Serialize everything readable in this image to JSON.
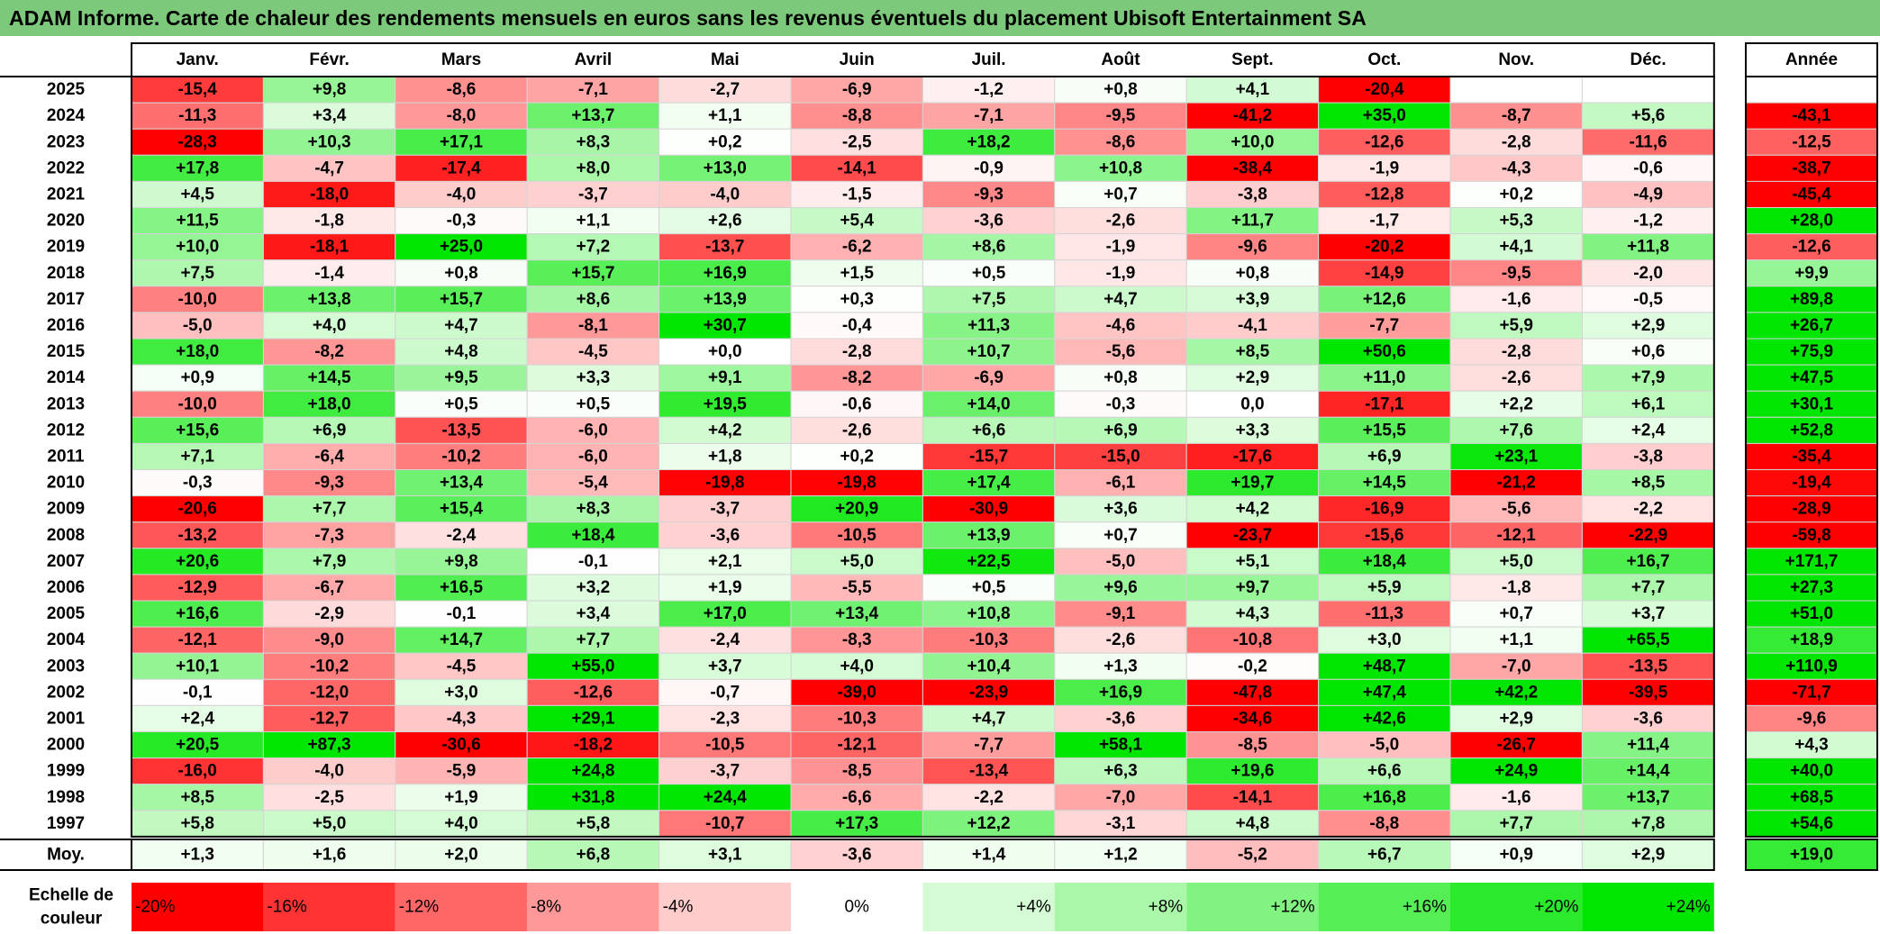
{
  "title": "ADAM Informe. Carte de chaleur des rendements mensuels en euros sans les revenus éventuels du placement Ubisoft Entertainment SA",
  "colors": {
    "title_bg": "#7dc97b",
    "positive_max": "#00e600",
    "negative_max": "#ff0000",
    "neutral": "#ffffff"
  },
  "chart_data": {
    "type": "heatmap",
    "columns": [
      "Janv.",
      "Févr.",
      "Mars",
      "Avril",
      "Mai",
      "Juin",
      "Juil.",
      "Août",
      "Sept.",
      "Oct.",
      "Nov.",
      "Déc."
    ],
    "annual_header": "Année",
    "rows": [
      {
        "year": "2025",
        "months": [
          "-15,4",
          "+9,8",
          "-8,6",
          "-7,1",
          "-2,7",
          "-6,9",
          "-1,2",
          "+0,8",
          "+4,1",
          "-20,4",
          "",
          ""
        ],
        "annual": ""
      },
      {
        "year": "2024",
        "months": [
          "-11,3",
          "+3,4",
          "-8,0",
          "+13,7",
          "+1,1",
          "-8,8",
          "-7,1",
          "-9,5",
          "-41,2",
          "+35,0",
          "-8,7",
          "+5,6"
        ],
        "annual": "-43,1"
      },
      {
        "year": "2023",
        "months": [
          "-28,3",
          "+10,3",
          "+17,1",
          "+8,3",
          "+0,2",
          "-2,5",
          "+18,2",
          "-8,6",
          "+10,0",
          "-12,6",
          "-2,8",
          "-11,6"
        ],
        "annual": "-12,5"
      },
      {
        "year": "2022",
        "months": [
          "+17,8",
          "-4,7",
          "-17,4",
          "+8,0",
          "+13,0",
          "-14,1",
          "-0,9",
          "+10,8",
          "-38,4",
          "-1,9",
          "-4,3",
          "-0,6"
        ],
        "annual": "-38,7"
      },
      {
        "year": "2021",
        "months": [
          "+4,5",
          "-18,0",
          "-4,0",
          "-3,7",
          "-4,0",
          "-1,5",
          "-9,3",
          "+0,7",
          "-3,8",
          "-12,8",
          "+0,2",
          "-4,9"
        ],
        "annual": "-45,4"
      },
      {
        "year": "2020",
        "months": [
          "+11,5",
          "-1,8",
          "-0,3",
          "+1,1",
          "+2,6",
          "+5,4",
          "-3,6",
          "-2,6",
          "+11,7",
          "-1,7",
          "+5,3",
          "-1,2"
        ],
        "annual": "+28,0"
      },
      {
        "year": "2019",
        "months": [
          "+10,0",
          "-18,1",
          "+25,0",
          "+7,2",
          "-13,7",
          "-6,2",
          "+8,6",
          "-1,9",
          "-9,6",
          "-20,2",
          "+4,1",
          "+11,8"
        ],
        "annual": "-12,6"
      },
      {
        "year": "2018",
        "months": [
          "+7,5",
          "-1,4",
          "+0,8",
          "+15,7",
          "+16,9",
          "+1,5",
          "+0,5",
          "-1,9",
          "+0,8",
          "-14,9",
          "-9,5",
          "-2,0"
        ],
        "annual": "+9,9"
      },
      {
        "year": "2017",
        "months": [
          "-10,0",
          "+13,8",
          "+15,7",
          "+8,6",
          "+13,9",
          "+0,3",
          "+7,5",
          "+4,7",
          "+3,9",
          "+12,6",
          "-1,6",
          "-0,5"
        ],
        "annual": "+89,8"
      },
      {
        "year": "2016",
        "months": [
          "-5,0",
          "+4,0",
          "+4,7",
          "-8,1",
          "+30,7",
          "-0,4",
          "+11,3",
          "-4,6",
          "-4,1",
          "-7,7",
          "+5,9",
          "+2,9"
        ],
        "annual": "+26,7"
      },
      {
        "year": "2015",
        "months": [
          "+18,0",
          "-8,2",
          "+4,8",
          "-4,5",
          "+0,0",
          "-2,8",
          "+10,7",
          "-5,6",
          "+8,5",
          "+50,6",
          "-2,8",
          "+0,6"
        ],
        "annual": "+75,9"
      },
      {
        "year": "2014",
        "months": [
          "+0,9",
          "+14,5",
          "+9,5",
          "+3,3",
          "+9,1",
          "-8,2",
          "-6,9",
          "+0,8",
          "+2,9",
          "+11,0",
          "-2,6",
          "+7,9"
        ],
        "annual": "+47,5"
      },
      {
        "year": "2013",
        "months": [
          "-10,0",
          "+18,0",
          "+0,5",
          "+0,5",
          "+19,5",
          "-0,6",
          "+14,0",
          "-0,3",
          "0,0",
          "-17,1",
          "+2,2",
          "+6,1"
        ],
        "annual": "+30,1"
      },
      {
        "year": "2012",
        "months": [
          "+15,6",
          "+6,9",
          "-13,5",
          "-6,0",
          "+4,2",
          "-2,6",
          "+6,6",
          "+6,9",
          "+3,3",
          "+15,5",
          "+7,6",
          "+2,4"
        ],
        "annual": "+52,8"
      },
      {
        "year": "2011",
        "months": [
          "+7,1",
          "-6,4",
          "-10,2",
          "-6,0",
          "+1,8",
          "+0,2",
          "-15,7",
          "-15,0",
          "-17,6",
          "+6,9",
          "+23,1",
          "-3,8"
        ],
        "annual": "-35,4"
      },
      {
        "year": "2010",
        "months": [
          "-0,3",
          "-9,3",
          "+13,4",
          "-5,4",
          "-19,8",
          "-19,8",
          "+17,4",
          "-6,1",
          "+19,7",
          "+14,5",
          "-21,2",
          "+8,5"
        ],
        "annual": "-19,4"
      },
      {
        "year": "2009",
        "months": [
          "-20,6",
          "+7,7",
          "+15,4",
          "+8,3",
          "-3,7",
          "+20,9",
          "-30,9",
          "+3,6",
          "+4,2",
          "-16,9",
          "-5,6",
          "-2,2"
        ],
        "annual": "-28,9"
      },
      {
        "year": "2008",
        "months": [
          "-13,2",
          "-7,3",
          "-2,4",
          "+18,4",
          "-3,6",
          "-10,5",
          "+13,9",
          "+0,7",
          "-23,7",
          "-15,6",
          "-12,1",
          "-22,9"
        ],
        "annual": "-59,8"
      },
      {
        "year": "2007",
        "months": [
          "+20,6",
          "+7,9",
          "+9,8",
          "-0,1",
          "+2,1",
          "+5,0",
          "+22,5",
          "-5,0",
          "+5,1",
          "+18,4",
          "+5,0",
          "+16,7"
        ],
        "annual": "+171,7"
      },
      {
        "year": "2006",
        "months": [
          "-12,9",
          "-6,7",
          "+16,5",
          "+3,2",
          "+1,9",
          "-5,5",
          "+0,5",
          "+9,6",
          "+9,7",
          "+5,9",
          "-1,8",
          "+7,7"
        ],
        "annual": "+27,3"
      },
      {
        "year": "2005",
        "months": [
          "+16,6",
          "-2,9",
          "-0,1",
          "+3,4",
          "+17,0",
          "+13,4",
          "+10,8",
          "-9,1",
          "+4,3",
          "-11,3",
          "+0,7",
          "+3,7"
        ],
        "annual": "+51,0"
      },
      {
        "year": "2004",
        "months": [
          "-12,1",
          "-9,0",
          "+14,7",
          "+7,7",
          "-2,4",
          "-8,3",
          "-10,3",
          "-2,6",
          "-10,8",
          "+3,0",
          "+1,1",
          "+65,5"
        ],
        "annual": "+18,9"
      },
      {
        "year": "2003",
        "months": [
          "+10,1",
          "-10,2",
          "-4,5",
          "+55,0",
          "+3,7",
          "+4,0",
          "+10,4",
          "+1,3",
          "-0,2",
          "+48,7",
          "-7,0",
          "-13,5"
        ],
        "annual": "+110,9"
      },
      {
        "year": "2002",
        "months": [
          "-0,1",
          "-12,0",
          "+3,0",
          "-12,6",
          "-0,7",
          "-39,0",
          "-23,9",
          "+16,9",
          "-47,8",
          "+47,4",
          "+42,2",
          "-39,5"
        ],
        "annual": "-71,7"
      },
      {
        "year": "2001",
        "months": [
          "+2,4",
          "-12,7",
          "-4,3",
          "+29,1",
          "-2,3",
          "-10,3",
          "+4,7",
          "-3,6",
          "-34,6",
          "+42,6",
          "+2,9",
          "-3,6"
        ],
        "annual": "-9,6"
      },
      {
        "year": "2000",
        "months": [
          "+20,5",
          "+87,3",
          "-30,6",
          "-18,2",
          "-10,5",
          "-12,1",
          "-7,7",
          "+58,1",
          "-8,5",
          "-5,0",
          "-26,7",
          "+11,4"
        ],
        "annual": "+4,3"
      },
      {
        "year": "1999",
        "months": [
          "-16,0",
          "-4,0",
          "-5,9",
          "+24,8",
          "-3,7",
          "-8,5",
          "-13,4",
          "+6,3",
          "+19,6",
          "+6,6",
          "+24,9",
          "+14,4"
        ],
        "annual": "+40,0"
      },
      {
        "year": "1998",
        "months": [
          "+8,5",
          "-2,5",
          "+1,9",
          "+31,8",
          "+24,4",
          "-6,6",
          "-2,2",
          "-7,0",
          "-14,1",
          "+16,8",
          "-1,6",
          "+13,7"
        ],
        "annual": "+68,5"
      },
      {
        "year": "1997",
        "months": [
          "+5,8",
          "+5,0",
          "+4,0",
          "+5,8",
          "-10,7",
          "+17,3",
          "+12,2",
          "-3,1",
          "+4,8",
          "-8,8",
          "+7,7",
          "+7,8"
        ],
        "annual": "+54,6"
      }
    ],
    "average": {
      "label": "Moy.",
      "months": [
        "+1,3",
        "+1,6",
        "+2,0",
        "+6,8",
        "+3,1",
        "-3,6",
        "+1,4",
        "+1,2",
        "-5,2",
        "+6,7",
        "+0,9",
        "+2,9"
      ],
      "annual": "+19,0"
    },
    "scale": {
      "label_line1": "Echelle de",
      "label_line2": "couleur",
      "steps": [
        {
          "label": "-20%",
          "value": -20
        },
        {
          "label": "-16%",
          "value": -16
        },
        {
          "label": "-12%",
          "value": -12
        },
        {
          "label": "-8%",
          "value": -8
        },
        {
          "label": "-4%",
          "value": -4
        },
        {
          "label": "0%",
          "value": 0
        },
        {
          "label": "+4%",
          "value": 4
        },
        {
          "label": "+8%",
          "value": 8
        },
        {
          "label": "+12%",
          "value": 12
        },
        {
          "label": "+16%",
          "value": 16
        },
        {
          "label": "+20%",
          "value": 20
        },
        {
          "label": "+24%",
          "value": 24
        }
      ]
    },
    "color_range": {
      "min": -20,
      "max": 24
    }
  }
}
